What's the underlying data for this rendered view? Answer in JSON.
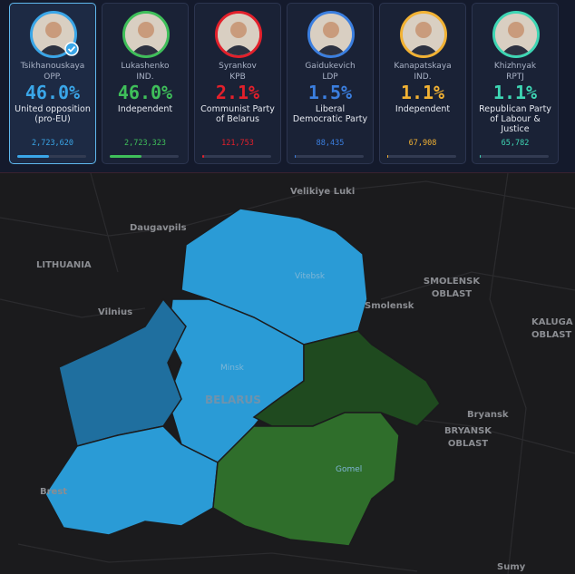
{
  "candidates": [
    {
      "name": "Tsikhanouskaya",
      "abbr": "OPP.",
      "percent": {
        "value": 46.0,
        "label": "46.0%"
      },
      "party": "United opposition (pro-EU)",
      "votes": "2,723,620",
      "color": "#3aa6e8",
      "selected": true
    },
    {
      "name": "Lukashenko",
      "abbr": "IND.",
      "percent": {
        "value": 46.0,
        "label": "46.0%"
      },
      "party": "Independent",
      "votes": "2,723,323",
      "color": "#3fbf5a",
      "selected": false
    },
    {
      "name": "Syrankov",
      "abbr": "KPB",
      "percent": {
        "value": 2.1,
        "label": "2.1%"
      },
      "party": "Communist Party of Belarus",
      "votes": "121,753",
      "color": "#e3202b",
      "selected": false
    },
    {
      "name": "Gaidukevich",
      "abbr": "LDP",
      "percent": {
        "value": 1.5,
        "label": "1.5%"
      },
      "party": "Liberal Democratic Party",
      "votes": "88,435",
      "color": "#3b7fe0",
      "selected": false
    },
    {
      "name": "Kanapatskaya",
      "abbr": "IND.",
      "percent": {
        "value": 1.1,
        "label": "1.1%"
      },
      "party": "Independent",
      "votes": "67,908",
      "color": "#f2b233",
      "selected": false
    },
    {
      "name": "Khizhnyak",
      "abbr": "RPTJ",
      "percent": {
        "value": 1.1,
        "label": "1.1%"
      },
      "party": "Republican Party of Labour & Justice",
      "votes": "65,782",
      "color": "#3ed6b4",
      "selected": false
    }
  ],
  "map_labels": [
    "Velikiye Luki",
    "Daugavpils",
    "LITHUANIA",
    "Vilnius",
    "Vitebsk",
    "SMOLENSK OBLAST",
    "Smolensk",
    "KALUGA OBLAST",
    "Minsk",
    "BELARUS",
    "Bryansk",
    "BRYANSK OBLAST",
    "Gomel",
    "Brest",
    "Sumy"
  ]
}
